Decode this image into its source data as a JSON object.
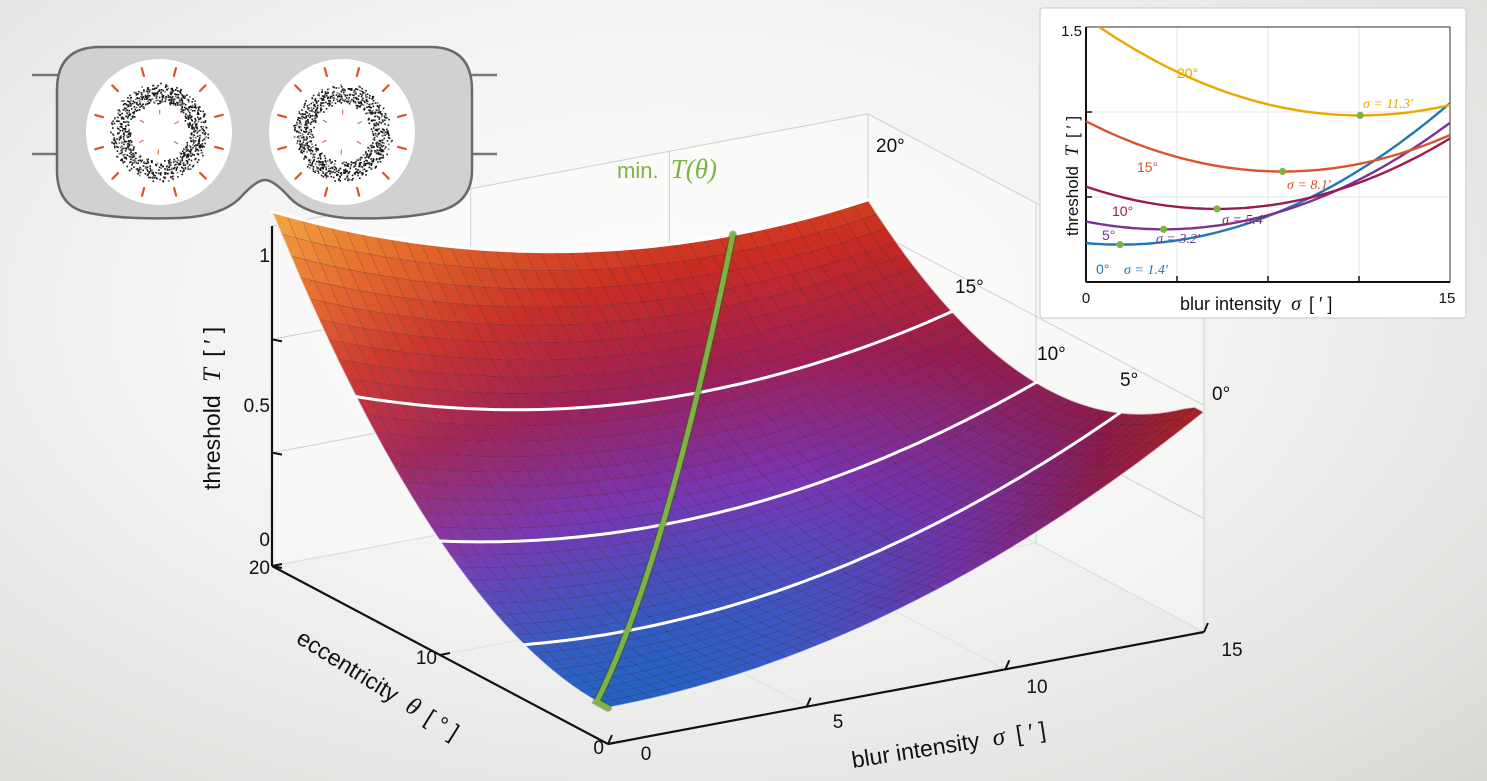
{
  "chart_data": [
    {
      "type": "surface",
      "title": "",
      "xlabel_text": "blur intensity",
      "xlabel_symbol": "σ",
      "xlabel_unit": "[ ′ ]",
      "ylabel_text": "eccentricity",
      "ylabel_symbol": "θ",
      "ylabel_unit": "[ ° ]",
      "zlabel_text": "threshold",
      "zlabel_symbol": "T",
      "zlabel_unit": "[ ′ ]",
      "x_ticks": [
        "0",
        "5",
        "10",
        "15"
      ],
      "y_ticks": [
        "0",
        "10",
        "20"
      ],
      "z_ticks": [
        "0",
        "0.5",
        "1"
      ],
      "xlim": [
        0,
        15
      ],
      "ylim": [
        0,
        20
      ],
      "zlim": [
        0,
        1.5
      ],
      "contour_levels_deg": [
        5,
        10,
        15,
        20
      ],
      "contour_labels": [
        "0°",
        "5°",
        "10°",
        "15°",
        "20°"
      ],
      "min_curve_prefix": "min.",
      "min_curve_symbol": "T(θ)",
      "min_curve_color": "#7cb342",
      "surface_colormap": [
        "#2563c9",
        "#7a35b4",
        "#a01f55",
        "#cc2b23",
        "#e7631f",
        "#f2a12a"
      ]
    },
    {
      "type": "line",
      "title": "",
      "xlabel_text": "blur intensity",
      "xlabel_symbol": "σ",
      "xlabel_unit": "[ ′ ]",
      "ylabel_text": "threshold",
      "ylabel_symbol": "T",
      "ylabel_unit": "[ ′ ]",
      "xlim": [
        0,
        15
      ],
      "ylim": [
        0,
        1.5
      ],
      "x_ticks": [
        "0",
        "15"
      ],
      "y_ticks": [
        "1.5"
      ],
      "grid": true,
      "marker_color": "#7cb342",
      "series": [
        {
          "name": "0°",
          "color": "#1f77b4",
          "a": 0.22,
          "b": 0.0045,
          "c": 1.4,
          "min_label": "σ = 1.4′"
        },
        {
          "name": "5°",
          "color": "#7b3294",
          "a": 0.31,
          "b": 0.0045,
          "c": 3.2,
          "min_label": "σ = 3.2′"
        },
        {
          "name": "10°",
          "color": "#9b1b4e",
          "a": 0.43,
          "b": 0.0045,
          "c": 5.4,
          "min_label": "σ = 5.4′"
        },
        {
          "name": "15°",
          "color": "#d9542b",
          "a": 0.65,
          "b": 0.0045,
          "c": 8.1,
          "min_label": "σ = 8.1′"
        },
        {
          "name": "20°",
          "color": "#e8a800",
          "a": 0.98,
          "b": 0.0045,
          "c": 11.3,
          "min_label": "σ = 11.3′"
        }
      ]
    }
  ]
}
